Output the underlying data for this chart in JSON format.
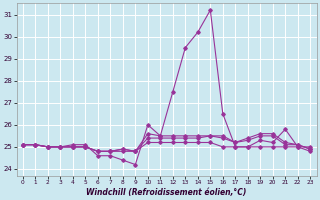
{
  "xlabel": "Windchill (Refroidissement éolien,°C)",
  "background_color": "#cce8f0",
  "grid_color": "#ffffff",
  "line_color": "#993399",
  "ylim": [
    23.7,
    31.5
  ],
  "xlim": [
    -0.5,
    23.5
  ],
  "yticks": [
    24,
    25,
    26,
    27,
    28,
    29,
    30,
    31
  ],
  "xticks": [
    0,
    1,
    2,
    3,
    4,
    5,
    6,
    7,
    8,
    9,
    10,
    11,
    12,
    13,
    14,
    15,
    16,
    17,
    18,
    19,
    20,
    21,
    22,
    23
  ],
  "series": [
    [
      25.1,
      25.1,
      25.0,
      25.0,
      25.0,
      25.0,
      24.8,
      24.8,
      24.8,
      24.8,
      25.2,
      25.2,
      25.2,
      25.2,
      25.2,
      25.2,
      25.0,
      25.0,
      25.0,
      25.0,
      25.0,
      25.0,
      25.0,
      25.0
    ],
    [
      25.1,
      25.1,
      25.0,
      25.0,
      25.1,
      25.1,
      24.6,
      24.6,
      24.4,
      24.2,
      26.0,
      25.5,
      27.5,
      29.5,
      30.2,
      31.2,
      26.5,
      25.0,
      25.0,
      25.3,
      25.2,
      25.8,
      25.0,
      24.8
    ],
    [
      25.1,
      25.1,
      25.0,
      25.0,
      25.0,
      25.0,
      24.8,
      24.8,
      24.9,
      24.8,
      25.4,
      25.4,
      25.4,
      25.4,
      25.4,
      25.5,
      25.4,
      25.2,
      25.3,
      25.5,
      25.5,
      25.1,
      25.1,
      24.9
    ],
    [
      25.1,
      25.1,
      25.0,
      25.0,
      25.0,
      25.0,
      24.8,
      24.8,
      24.9,
      24.8,
      25.6,
      25.5,
      25.5,
      25.5,
      25.5,
      25.5,
      25.5,
      25.2,
      25.4,
      25.6,
      25.6,
      25.2,
      25.1,
      24.9
    ]
  ]
}
